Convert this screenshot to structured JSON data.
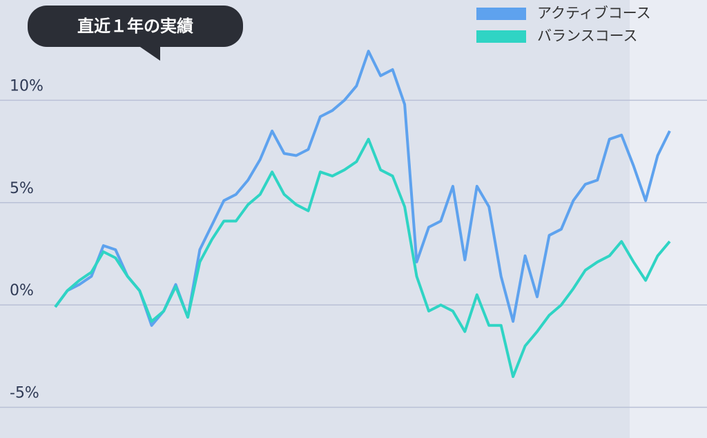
{
  "chart_data": {
    "type": "line",
    "title": "直近１年の実績",
    "ylim": [
      -6.5,
      14.9
    ],
    "yticks": [
      {
        "value": -5,
        "label": "-5%"
      },
      {
        "value": 0,
        "label": "0%"
      },
      {
        "value": 5,
        "label": "5%"
      },
      {
        "value": 10,
        "label": "10%"
      }
    ],
    "grid": true,
    "legend": "upper right",
    "series": [
      {
        "name": "アクティブコース",
        "color": "#5ea2ee",
        "values": [
          -0.1,
          0.7,
          1.0,
          1.4,
          2.9,
          2.7,
          1.4,
          0.7,
          -1.0,
          -0.3,
          1.0,
          -0.6,
          2.7,
          3.9,
          5.1,
          5.4,
          6.1,
          7.1,
          8.5,
          7.4,
          7.3,
          7.6,
          9.2,
          9.5,
          10.0,
          10.7,
          12.4,
          11.2,
          11.5,
          9.8,
          2.1,
          3.8,
          4.1,
          5.8,
          2.2,
          5.8,
          4.8,
          1.4,
          -0.8,
          2.4,
          0.4,
          3.4,
          3.7,
          5.1,
          5.9,
          6.1,
          8.1,
          8.3,
          6.8,
          5.1,
          7.3,
          8.5
        ]
      },
      {
        "name": "バランスコース",
        "color": "#2fd4c4",
        "values": [
          -0.1,
          0.7,
          1.2,
          1.6,
          2.6,
          2.3,
          1.4,
          0.7,
          -0.8,
          -0.3,
          0.9,
          -0.6,
          2.1,
          3.2,
          4.1,
          4.1,
          4.9,
          5.4,
          6.5,
          5.4,
          4.9,
          4.6,
          6.5,
          6.3,
          6.6,
          7.0,
          8.1,
          6.6,
          6.3,
          4.8,
          1.4,
          -0.3,
          0.0,
          -0.3,
          -1.3,
          0.5,
          -1.0,
          -1.0,
          -3.5,
          -2.0,
          -1.3,
          -0.5,
          0.0,
          0.8,
          1.7,
          2.1,
          2.4,
          3.1,
          2.1,
          1.2,
          2.4,
          3.1
        ]
      }
    ]
  }
}
